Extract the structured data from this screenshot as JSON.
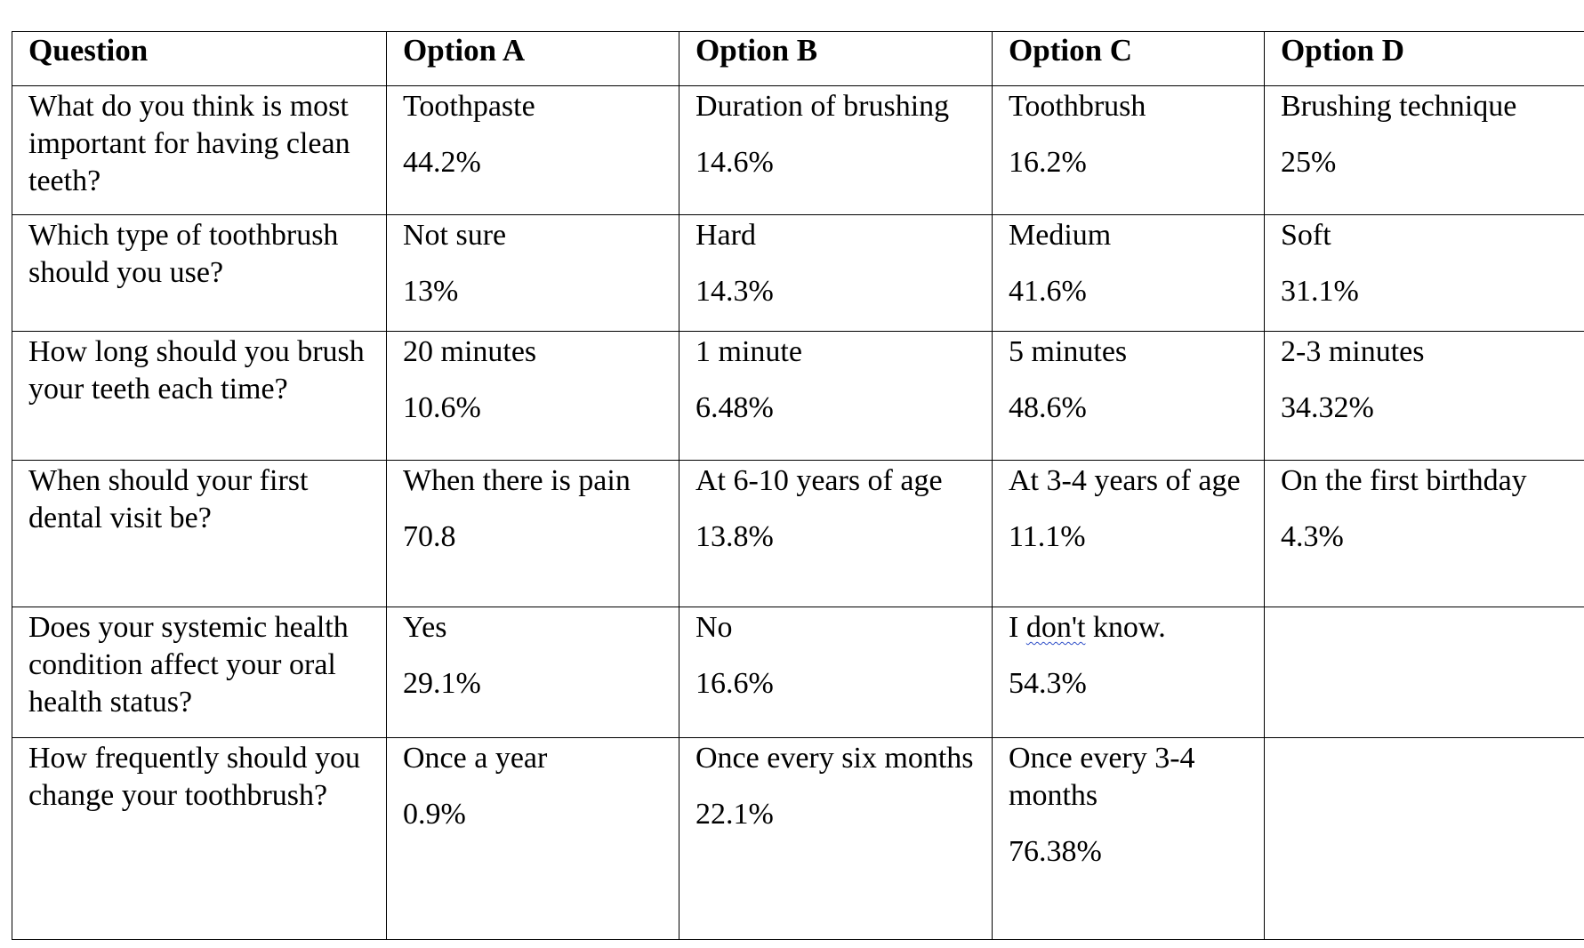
{
  "table": {
    "headers": [
      "Question",
      "Option A",
      "Option B",
      "Option C",
      "Option D"
    ],
    "rows": [
      {
        "question": "What do you think is most important for having clean teeth?",
        "options": [
          {
            "label": "Toothpaste",
            "value": "44.2%"
          },
          {
            "label": "Duration of brushing",
            "value": "14.6%"
          },
          {
            "label": "Toothbrush",
            "value": "16.2%"
          },
          {
            "label": "Brushing technique",
            "value": "25%"
          }
        ]
      },
      {
        "question": "Which type of toothbrush should you use?",
        "options": [
          {
            "label": "Not sure",
            "value": "13%"
          },
          {
            "label": "Hard",
            "value": "14.3%"
          },
          {
            "label": "Medium",
            "value": "41.6%"
          },
          {
            "label": "Soft",
            "value": "31.1%"
          }
        ]
      },
      {
        "question": "How long should you brush your teeth each time?",
        "options": [
          {
            "label": "20 minutes",
            "value": "10.6%"
          },
          {
            "label": "1 minute",
            "value": "6.48%"
          },
          {
            "label": "5 minutes",
            "value": "48.6%"
          },
          {
            "label": "2-3 minutes",
            "value": "34.32%"
          }
        ]
      },
      {
        "question": "When should your first dental visit be?",
        "options": [
          {
            "label": "When there is pain",
            "value": "70.8"
          },
          {
            "label": "At 6-10 years of age",
            "value": "13.8%"
          },
          {
            "label": "At 3-4 years of age",
            "value": "11.1%"
          },
          {
            "label": "On the first birthday",
            "value": "4.3%"
          }
        ]
      },
      {
        "question": "Does your systemic health condition affect your oral health status?",
        "options": [
          {
            "label": "Yes",
            "value": "29.1%"
          },
          {
            "label": "No",
            "value": "16.6%"
          },
          {
            "label_pre": "I ",
            "label_flag": "don't",
            "label_post": " know.",
            "value": "54.3%"
          },
          {
            "label": "",
            "value": ""
          }
        ]
      },
      {
        "question": "How frequently should you change your toothbrush?",
        "options": [
          {
            "label": "Once a year",
            "value": "0.9%"
          },
          {
            "label": "Once every six months",
            "value": "22.1%"
          },
          {
            "label": "Once every 3-4 months",
            "value": "76.38%"
          },
          {
            "label": "",
            "value": ""
          }
        ]
      }
    ]
  }
}
